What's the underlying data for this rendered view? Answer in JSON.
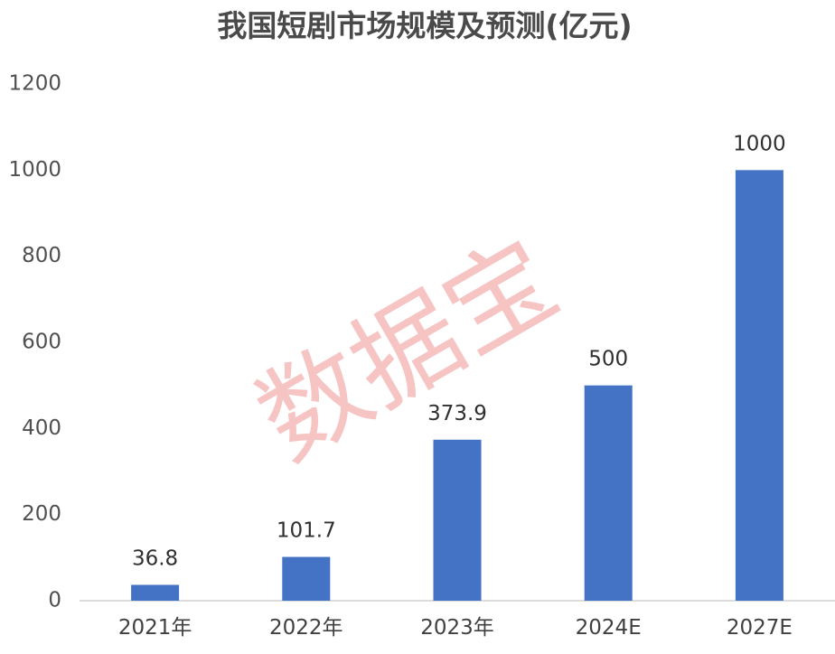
{
  "chart_data": {
    "type": "bar",
    "title": "我国短剧市场规模及预测(亿元)",
    "categories": [
      "2021年",
      "2022年",
      "2023年",
      "2024E",
      "2027E"
    ],
    "values": [
      36.8,
      101.7,
      373.9,
      500,
      1000
    ],
    "data_labels": [
      "36.8",
      "101.7",
      "373.9",
      "500",
      "1000"
    ],
    "ylim": [
      0,
      1200
    ],
    "yticks": [
      0,
      200,
      400,
      600,
      800,
      1000,
      1200
    ],
    "ytick_labels": [
      "0",
      "200",
      "400",
      "600",
      "800",
      "1000",
      "1200"
    ],
    "xlabel": "",
    "ylabel": "",
    "grid": false,
    "legend": "none",
    "bar_color": "#4472c4"
  },
  "watermark": {
    "text": "数据宝",
    "color": "#f08a8a"
  }
}
